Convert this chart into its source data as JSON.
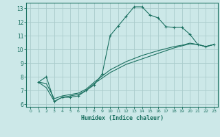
{
  "xlabel": "Humidex (Indice chaleur)",
  "bg_color": "#cce8e8",
  "grid_color": "#aacccc",
  "line_color": "#1a7060",
  "xlim": [
    -0.5,
    23.5
  ],
  "ylim": [
    5.8,
    13.4
  ],
  "xticks": [
    0,
    1,
    2,
    3,
    4,
    5,
    6,
    7,
    8,
    9,
    10,
    11,
    12,
    13,
    14,
    15,
    16,
    17,
    18,
    19,
    20,
    21,
    22,
    23
  ],
  "yticks": [
    6,
    7,
    8,
    9,
    10,
    11,
    12,
    13
  ],
  "line1_x": [
    1,
    2,
    3,
    4,
    5,
    6,
    7,
    8,
    9,
    10,
    11,
    12,
    13,
    14,
    15,
    16,
    17,
    18,
    19,
    20,
    21,
    22,
    23
  ],
  "line1_y": [
    7.6,
    8.0,
    6.2,
    6.5,
    6.5,
    6.6,
    7.0,
    7.4,
    8.2,
    11.0,
    11.7,
    12.4,
    13.1,
    13.1,
    12.5,
    12.3,
    11.65,
    11.6,
    11.6,
    11.1,
    10.35,
    10.2,
    10.35
  ],
  "line2_x": [
    1,
    2,
    3,
    4,
    5,
    6,
    7,
    8,
    10,
    12,
    14,
    16,
    18,
    19,
    20,
    21,
    22,
    23
  ],
  "line2_y": [
    7.6,
    7.2,
    6.2,
    6.5,
    6.6,
    6.7,
    7.0,
    7.5,
    8.3,
    8.9,
    9.3,
    9.7,
    10.1,
    10.25,
    10.4,
    10.35,
    10.2,
    10.35
  ],
  "line3_x": [
    1,
    2,
    3,
    4,
    5,
    6,
    7,
    8,
    10,
    12,
    14,
    16,
    18,
    19,
    20,
    21,
    22,
    23
  ],
  "line3_y": [
    7.6,
    7.5,
    6.4,
    6.6,
    6.7,
    6.8,
    7.1,
    7.6,
    8.5,
    9.1,
    9.55,
    9.9,
    10.2,
    10.3,
    10.45,
    10.35,
    10.2,
    10.35
  ]
}
